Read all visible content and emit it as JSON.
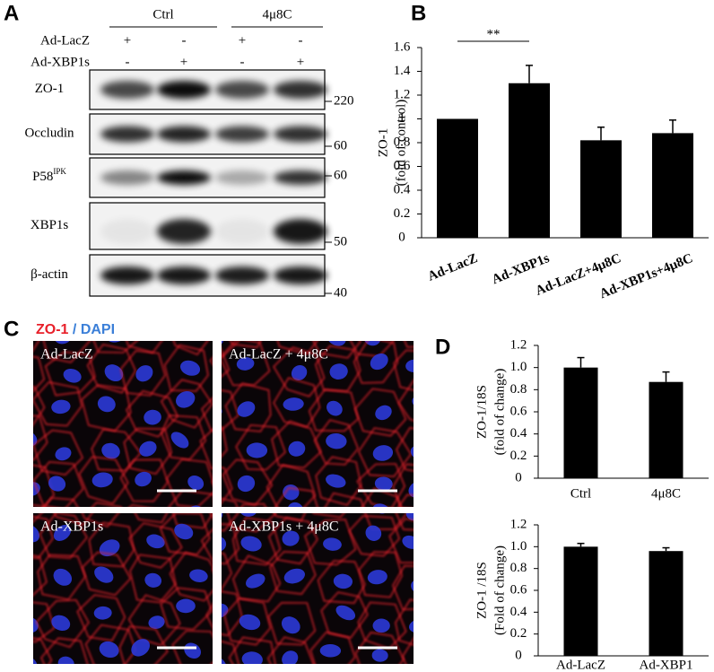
{
  "panels": [
    "A",
    "B",
    "C",
    "D"
  ],
  "blot": {
    "groups": [
      "Ctrl",
      "4μ8C"
    ],
    "treatments": [
      {
        "label": "Ad-LacZ",
        "lanes": [
          "+",
          "-",
          "+",
          "-"
        ]
      },
      {
        "label": "Ad-XBP1s",
        "lanes": [
          "-",
          "+",
          "-",
          "+"
        ]
      }
    ],
    "bands": [
      {
        "label": "ZO-1",
        "marker": "220"
      },
      {
        "label": "Occludin",
        "marker": "60"
      },
      {
        "label": "P58",
        "superscript": "IPK",
        "marker": "60"
      },
      {
        "label": "XBP1s",
        "marker": "50"
      },
      {
        "label": "β-actin",
        "marker": "40"
      }
    ]
  },
  "micrographs": {
    "stain_red": "ZO-1",
    "separator": "/",
    "stain_blue": "DAPI",
    "images": [
      "Ad-LacZ",
      "Ad-LacZ + 4μ8C",
      "Ad-XBP1s",
      "Ad-XBP1s + 4μ8C"
    ]
  },
  "chart_data": [
    {
      "type": "bar",
      "ylabel": [
        "ZO-1",
        "(fold of control)"
      ],
      "categories": [
        "Ad-LacZ",
        "Ad-XBP1s",
        "Ad-LacZ+4μ8C",
        "Ad-XBP1s+4μ8C"
      ],
      "values": [
        1,
        1.3,
        0.82,
        0.88
      ],
      "errors": [
        null,
        0.15,
        0.11,
        0.11
      ],
      "color": "#000000",
      "annotation": "**",
      "ylim": [
        0,
        1.6
      ],
      "yticks": [
        0,
        0.2,
        0.4,
        0.6,
        0.8,
        1,
        1.2,
        1.4,
        1.6
      ]
    },
    {
      "type": "bar",
      "ylabel": [
        "ZO-1/18S",
        "(fold of change)"
      ],
      "categories": [
        "Ctrl",
        "4μ8C"
      ],
      "values": [
        1.0,
        0.87
      ],
      "errors": [
        0.09,
        0.09
      ],
      "color": "#000000",
      "ylim": [
        0,
        1.2
      ],
      "yticks": [
        0,
        0.2,
        0.4,
        0.6,
        0.8,
        {
          "value": 1.0,
          "label": "1.0"
        },
        1.2
      ]
    },
    {
      "type": "bar",
      "ylabel": [
        "ZO-1 /18S",
        "(Fold of change)"
      ],
      "categories": [
        "Ad-LacZ",
        "Ad-XBP1"
      ],
      "values": [
        1.0,
        0.96
      ],
      "errors": [
        0.03,
        0.03
      ],
      "color": "#000000",
      "ylim": [
        0,
        1.2
      ],
      "yticks": [
        0,
        0.2,
        0.4,
        0.6,
        0.8,
        {
          "value": 1.0,
          "label": "1.0"
        },
        1.2
      ]
    }
  ]
}
